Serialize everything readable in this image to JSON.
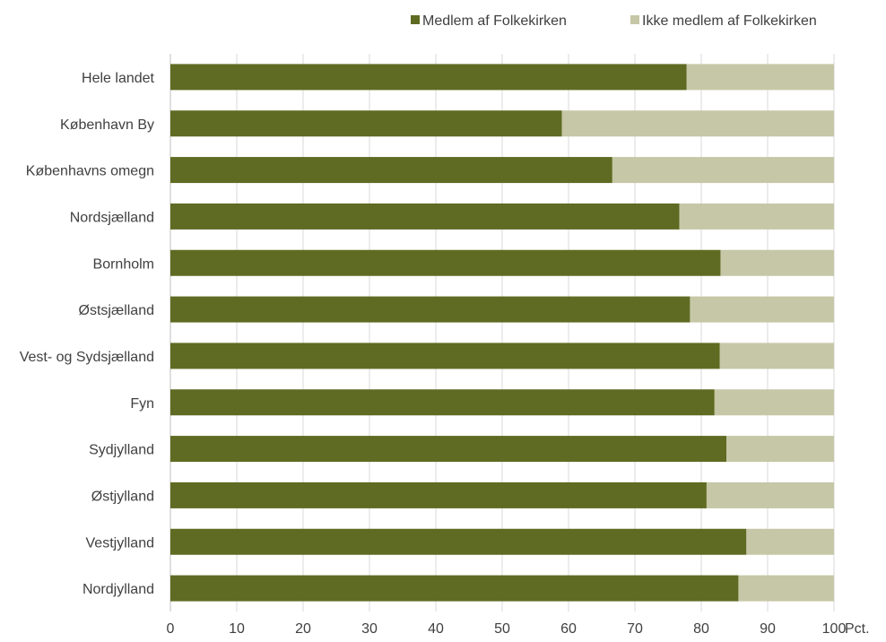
{
  "chart_data": {
    "type": "bar",
    "orientation": "horizontal",
    "stacked": true,
    "categories": [
      "Hele landet",
      "København By",
      "Københavns omegn",
      "Nordsjælland",
      "Bornholm",
      "Østsjælland",
      "Vest- og Sydsjælland",
      "Fyn",
      "Sydjylland",
      "Østjylland",
      "Vestjylland",
      "Nordjylland"
    ],
    "series": [
      {
        "name": "Medlem af Folkekirken",
        "color": "#5f6b22",
        "values": [
          77.8,
          59.0,
          66.6,
          76.7,
          82.9,
          78.3,
          82.8,
          82.0,
          83.8,
          80.8,
          86.8,
          85.6
        ]
      },
      {
        "name": "Ikke medlem af Folkekirken",
        "color": "#c6c7a6",
        "values": [
          22.2,
          41.0,
          33.4,
          23.3,
          17.1,
          21.7,
          17.2,
          18.0,
          16.2,
          19.2,
          13.2,
          14.4
        ]
      }
    ],
    "xlim": [
      0,
      100
    ],
    "xticks": [
      "0",
      "10",
      "20",
      "30",
      "40",
      "50",
      "60",
      "70",
      "80",
      "90",
      "100"
    ],
    "xunit": "Pct.",
    "grid": true,
    "gridColor": "#d9d9d9",
    "legend": "top-right"
  }
}
